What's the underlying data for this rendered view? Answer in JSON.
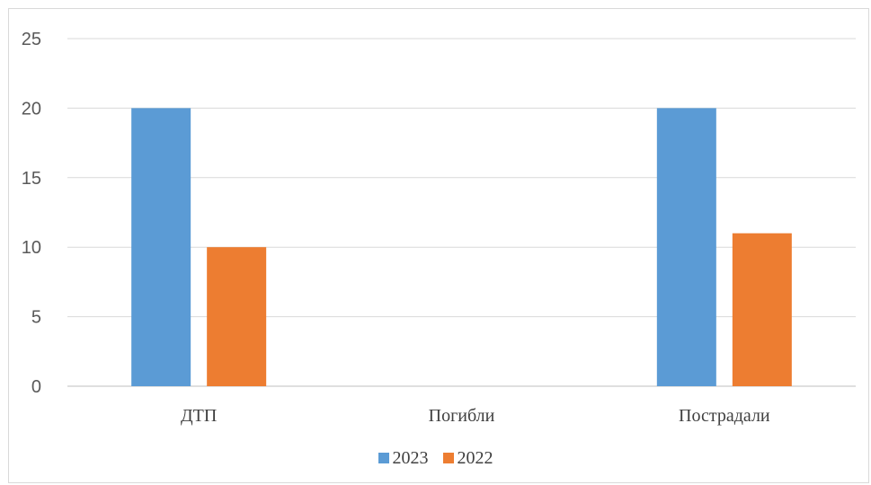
{
  "chart_data": {
    "type": "bar",
    "categories": [
      "ДТП",
      "Погибли",
      "Пострадали"
    ],
    "series": [
      {
        "name": "2023",
        "values": [
          20,
          0,
          20
        ],
        "color": "#5B9BD5"
      },
      {
        "name": "2022",
        "values": [
          10,
          0,
          11
        ],
        "color": "#ED7D31"
      }
    ],
    "ylim": [
      0,
      25
    ],
    "yticks": [
      0,
      5,
      10,
      15,
      20,
      25
    ],
    "grid": true,
    "legend_position": "bottom"
  }
}
